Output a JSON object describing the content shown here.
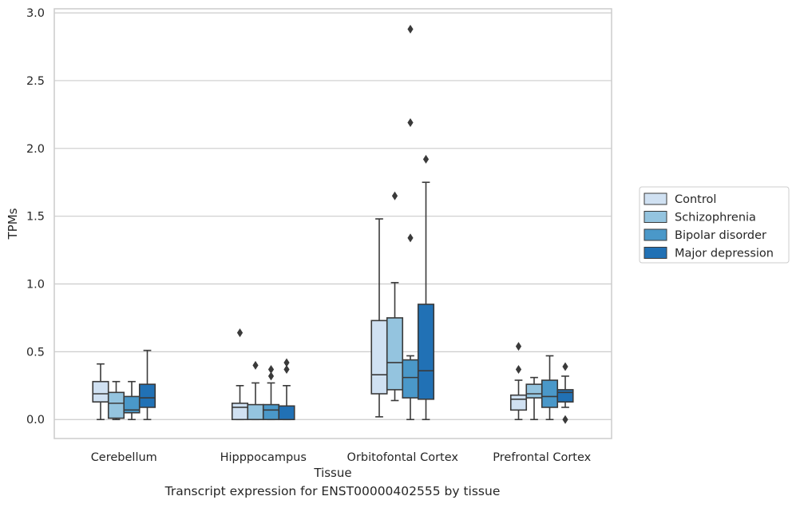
{
  "caption": "Transcript expression for ENST00000402555 by tissue",
  "chart_data": {
    "type": "box",
    "xlabel": "Tissue",
    "ylabel": "TPMs",
    "ylim": [
      -0.14,
      3.03
    ],
    "yticks": [
      0.0,
      0.5,
      1.0,
      1.5,
      2.0,
      2.5,
      3.0
    ],
    "ytick_labels": [
      "0.0",
      "0.5",
      "1.0",
      "1.5",
      "2.0",
      "2.5",
      "3.0"
    ],
    "categories": [
      "Cerebellum",
      "Hipppocampus",
      "Orbitofontal Cortex",
      "Prefrontal Cortex"
    ],
    "grid": "horizontal",
    "legend_position": "right",
    "series": [
      {
        "name": "Control",
        "color": "#d0e1f2",
        "boxes": [
          {
            "whislo": 0.0,
            "q1": 0.13,
            "med": 0.19,
            "q3": 0.28,
            "whishi": 0.41,
            "fliers": []
          },
          {
            "whislo": 0.0,
            "q1": 0.0,
            "med": 0.09,
            "q3": 0.12,
            "whishi": 0.25,
            "fliers": [
              0.64
            ]
          },
          {
            "whislo": 0.02,
            "q1": 0.19,
            "med": 0.33,
            "q3": 0.73,
            "whishi": 1.48,
            "fliers": []
          },
          {
            "whislo": 0.0,
            "q1": 0.07,
            "med": 0.15,
            "q3": 0.18,
            "whishi": 0.29,
            "fliers": [
              0.37,
              0.54
            ]
          }
        ]
      },
      {
        "name": "Schizophrenia",
        "color": "#94c4df",
        "boxes": [
          {
            "whislo": 0.0,
            "q1": 0.01,
            "med": 0.12,
            "q3": 0.2,
            "whishi": 0.28,
            "fliers": []
          },
          {
            "whislo": 0.0,
            "q1": 0.0,
            "med": 0.0,
            "q3": 0.11,
            "whishi": 0.27,
            "fliers": [
              0.4
            ]
          },
          {
            "whislo": 0.14,
            "q1": 0.22,
            "med": 0.42,
            "q3": 0.75,
            "whishi": 1.01,
            "fliers": [
              1.65
            ]
          },
          {
            "whislo": 0.0,
            "q1": 0.16,
            "med": 0.19,
            "q3": 0.26,
            "whishi": 0.31,
            "fliers": []
          }
        ]
      },
      {
        "name": "Bipolar disorder",
        "color": "#4a98c9",
        "boxes": [
          {
            "whislo": 0.0,
            "q1": 0.05,
            "med": 0.07,
            "q3": 0.17,
            "whishi": 0.28,
            "fliers": []
          },
          {
            "whislo": 0.0,
            "q1": 0.0,
            "med": 0.07,
            "q3": 0.11,
            "whishi": 0.27,
            "fliers": [
              0.32,
              0.37
            ]
          },
          {
            "whislo": 0.0,
            "q1": 0.16,
            "med": 0.31,
            "q3": 0.44,
            "whishi": 0.47,
            "fliers": [
              1.34,
              2.19,
              2.88
            ]
          },
          {
            "whislo": 0.0,
            "q1": 0.09,
            "med": 0.17,
            "q3": 0.29,
            "whishi": 0.47,
            "fliers": []
          }
        ]
      },
      {
        "name": "Major depression",
        "color": "#2171b5",
        "boxes": [
          {
            "whislo": 0.0,
            "q1": 0.09,
            "med": 0.16,
            "q3": 0.26,
            "whishi": 0.51,
            "fliers": []
          },
          {
            "whislo": 0.0,
            "q1": 0.0,
            "med": 0.0,
            "q3": 0.1,
            "whishi": 0.25,
            "fliers": [
              0.37,
              0.42
            ]
          },
          {
            "whislo": 0.0,
            "q1": 0.15,
            "med": 0.36,
            "q3": 0.85,
            "whishi": 1.75,
            "fliers": [
              1.92
            ]
          },
          {
            "whislo": 0.09,
            "q1": 0.13,
            "med": 0.2,
            "q3": 0.22,
            "whishi": 0.32,
            "fliers": [
              0.0,
              0.39
            ]
          }
        ]
      }
    ]
  }
}
